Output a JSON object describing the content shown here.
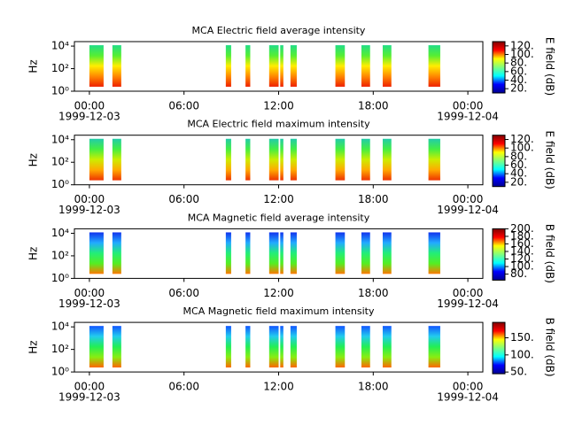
{
  "chart_data": [
    {
      "type": "spectrogram",
      "title": "MCA  Electric field average intensity",
      "ylabel": "Hz",
      "colorbar_label": "E field (dB)",
      "log_y": true,
      "xlim": [
        -0.95,
        24.95
      ],
      "xticks": [
        {
          "value": 0,
          "label": "00:00"
        },
        {
          "value": 6,
          "label": "06:00"
        },
        {
          "value": 12,
          "label": "12:00"
        },
        {
          "value": 18,
          "label": "18:00"
        },
        {
          "value": 24,
          "label": "00:00"
        }
      ],
      "date_labels": [
        {
          "value": 0,
          "label": "1999-12-03"
        },
        {
          "value": 24,
          "label": "1999-12-04"
        }
      ],
      "ylim": [
        1,
        25000
      ],
      "yticks": [
        {
          "value": 1,
          "label": "10⁰"
        },
        {
          "value": 100,
          "label": "10²"
        },
        {
          "value": 10000,
          "label": "10⁴"
        }
      ],
      "freq": [
        2.5,
        12000
      ],
      "colors": [
        "#22dd88",
        "#55ee33",
        "#ffee00",
        "#ff8800",
        "#ee2200"
      ],
      "intervals": [
        [
          0.0,
          0.9
        ],
        [
          1.46,
          2.02
        ],
        [
          8.65,
          8.99
        ],
        [
          9.9,
          10.2
        ],
        [
          11.4,
          12.0
        ],
        [
          12.1,
          12.3
        ],
        [
          12.75,
          13.15
        ],
        [
          15.6,
          16.2
        ],
        [
          17.25,
          17.8
        ],
        [
          18.6,
          19.15
        ],
        [
          21.5,
          22.25
        ]
      ],
      "clim": [
        10,
        130
      ],
      "cticks": [
        {
          "value": 20,
          "label": "20."
        },
        {
          "value": 40,
          "label": "40."
        },
        {
          "value": 60,
          "label": "60."
        },
        {
          "value": 80,
          "label": "80."
        },
        {
          "value": 100,
          "label": "100."
        },
        {
          "value": 120,
          "label": "120."
        }
      ]
    },
    {
      "type": "spectrogram",
      "title": "MCA  Electric field maximum intensity",
      "ylabel": "Hz",
      "colorbar_label": "E field (dB)",
      "log_y": true,
      "xlim": [
        -0.95,
        24.95
      ],
      "xticks": [
        {
          "value": 0,
          "label": "00:00"
        },
        {
          "value": 6,
          "label": "06:00"
        },
        {
          "value": 12,
          "label": "12:00"
        },
        {
          "value": 18,
          "label": "18:00"
        },
        {
          "value": 24,
          "label": "00:00"
        }
      ],
      "date_labels": [
        {
          "value": 0,
          "label": "1999-12-03"
        },
        {
          "value": 24,
          "label": "1999-12-04"
        }
      ],
      "ylim": [
        1,
        25000
      ],
      "yticks": [
        {
          "value": 1,
          "label": "10⁰"
        },
        {
          "value": 100,
          "label": "10²"
        },
        {
          "value": 10000,
          "label": "10⁴"
        }
      ],
      "freq": [
        2.5,
        12000
      ],
      "colors": [
        "#22ccaa",
        "#44ee44",
        "#ccee00",
        "#ffaa00",
        "#ee3300"
      ],
      "intervals": [
        [
          0.0,
          0.9
        ],
        [
          1.46,
          2.02
        ],
        [
          8.65,
          8.99
        ],
        [
          9.9,
          10.2
        ],
        [
          11.4,
          12.0
        ],
        [
          12.1,
          12.3
        ],
        [
          12.75,
          13.15
        ],
        [
          15.6,
          16.2
        ],
        [
          17.25,
          17.8
        ],
        [
          18.6,
          19.15
        ],
        [
          21.5,
          22.25
        ]
      ],
      "clim": [
        10,
        130
      ],
      "cticks": [
        {
          "value": 20,
          "label": "20."
        },
        {
          "value": 40,
          "label": "40."
        },
        {
          "value": 60,
          "label": "60."
        },
        {
          "value": 80,
          "label": "80."
        },
        {
          "value": 100,
          "label": "100."
        },
        {
          "value": 120,
          "label": "120."
        }
      ]
    },
    {
      "type": "spectrogram",
      "title": "MCA  Magnetic field average intensity",
      "ylabel": "Hz",
      "colorbar_label": "B field (dB)",
      "log_y": true,
      "xlim": [
        -0.95,
        24.95
      ],
      "xticks": [
        {
          "value": 0,
          "label": "00:00"
        },
        {
          "value": 6,
          "label": "06:00"
        },
        {
          "value": 12,
          "label": "12:00"
        },
        {
          "value": 18,
          "label": "18:00"
        },
        {
          "value": 24,
          "label": "00:00"
        }
      ],
      "date_labels": [
        {
          "value": 0,
          "label": "1999-12-03"
        },
        {
          "value": 24,
          "label": "1999-12-04"
        }
      ],
      "ylim": [
        1,
        25000
      ],
      "yticks": [
        {
          "value": 1,
          "label": "10⁰"
        },
        {
          "value": 100,
          "label": "10²"
        },
        {
          "value": 10000,
          "label": "10⁴"
        }
      ],
      "freq": [
        2.5,
        12000
      ],
      "colors": [
        "#1133ee",
        "#22aaff",
        "#22ee77",
        "#55ee22",
        "#ff7700"
      ],
      "intervals": [
        [
          0.0,
          0.9
        ],
        [
          1.46,
          2.02
        ],
        [
          8.65,
          8.99
        ],
        [
          9.9,
          10.2
        ],
        [
          11.4,
          12.0
        ],
        [
          12.1,
          12.3
        ],
        [
          12.75,
          13.15
        ],
        [
          15.6,
          16.2
        ],
        [
          17.25,
          17.8
        ],
        [
          18.6,
          19.15
        ],
        [
          21.5,
          22.25
        ]
      ],
      "clim": [
        64,
        200
      ],
      "cticks": [
        {
          "value": 80,
          "label": "80."
        },
        {
          "value": 100,
          "label": "100."
        },
        {
          "value": 120,
          "label": "120."
        },
        {
          "value": 140,
          "label": "140."
        },
        {
          "value": 160,
          "label": "160."
        },
        {
          "value": 180,
          "label": "180."
        },
        {
          "value": 200,
          "label": "200."
        }
      ]
    },
    {
      "type": "spectrogram",
      "title": "MCA  Magnetic field maximum intensity",
      "ylabel": "Hz",
      "colorbar_label": "B field (dB)",
      "log_y": true,
      "xlim": [
        -0.95,
        24.95
      ],
      "xticks": [
        {
          "value": 0,
          "label": "00:00"
        },
        {
          "value": 6,
          "label": "06:00"
        },
        {
          "value": 12,
          "label": "12:00"
        },
        {
          "value": 18,
          "label": "18:00"
        },
        {
          "value": 24,
          "label": "00:00"
        }
      ],
      "date_labels": [
        {
          "value": 0,
          "label": "1999-12-03"
        },
        {
          "value": 24,
          "label": "1999-12-04"
        }
      ],
      "ylim": [
        1,
        25000
      ],
      "yticks": [
        {
          "value": 1,
          "label": "10⁰"
        },
        {
          "value": 100,
          "label": "10²"
        },
        {
          "value": 10000,
          "label": "10⁴"
        }
      ],
      "freq": [
        2.5,
        12000
      ],
      "colors": [
        "#1155ff",
        "#22ccee",
        "#22ee55",
        "#88ee11",
        "#ff6600"
      ],
      "intervals": [
        [
          0.0,
          0.9
        ],
        [
          1.46,
          2.02
        ],
        [
          8.65,
          8.99
        ],
        [
          9.9,
          10.2
        ],
        [
          11.4,
          12.0
        ],
        [
          12.1,
          12.3
        ],
        [
          12.75,
          13.15
        ],
        [
          15.6,
          16.2
        ],
        [
          17.25,
          17.8
        ],
        [
          18.6,
          19.15
        ],
        [
          21.5,
          22.25
        ]
      ],
      "clim": [
        45,
        195
      ],
      "cticks": [
        {
          "value": 50,
          "label": "50."
        },
        {
          "value": 100,
          "label": "100."
        },
        {
          "value": 150,
          "label": "150."
        }
      ]
    }
  ]
}
